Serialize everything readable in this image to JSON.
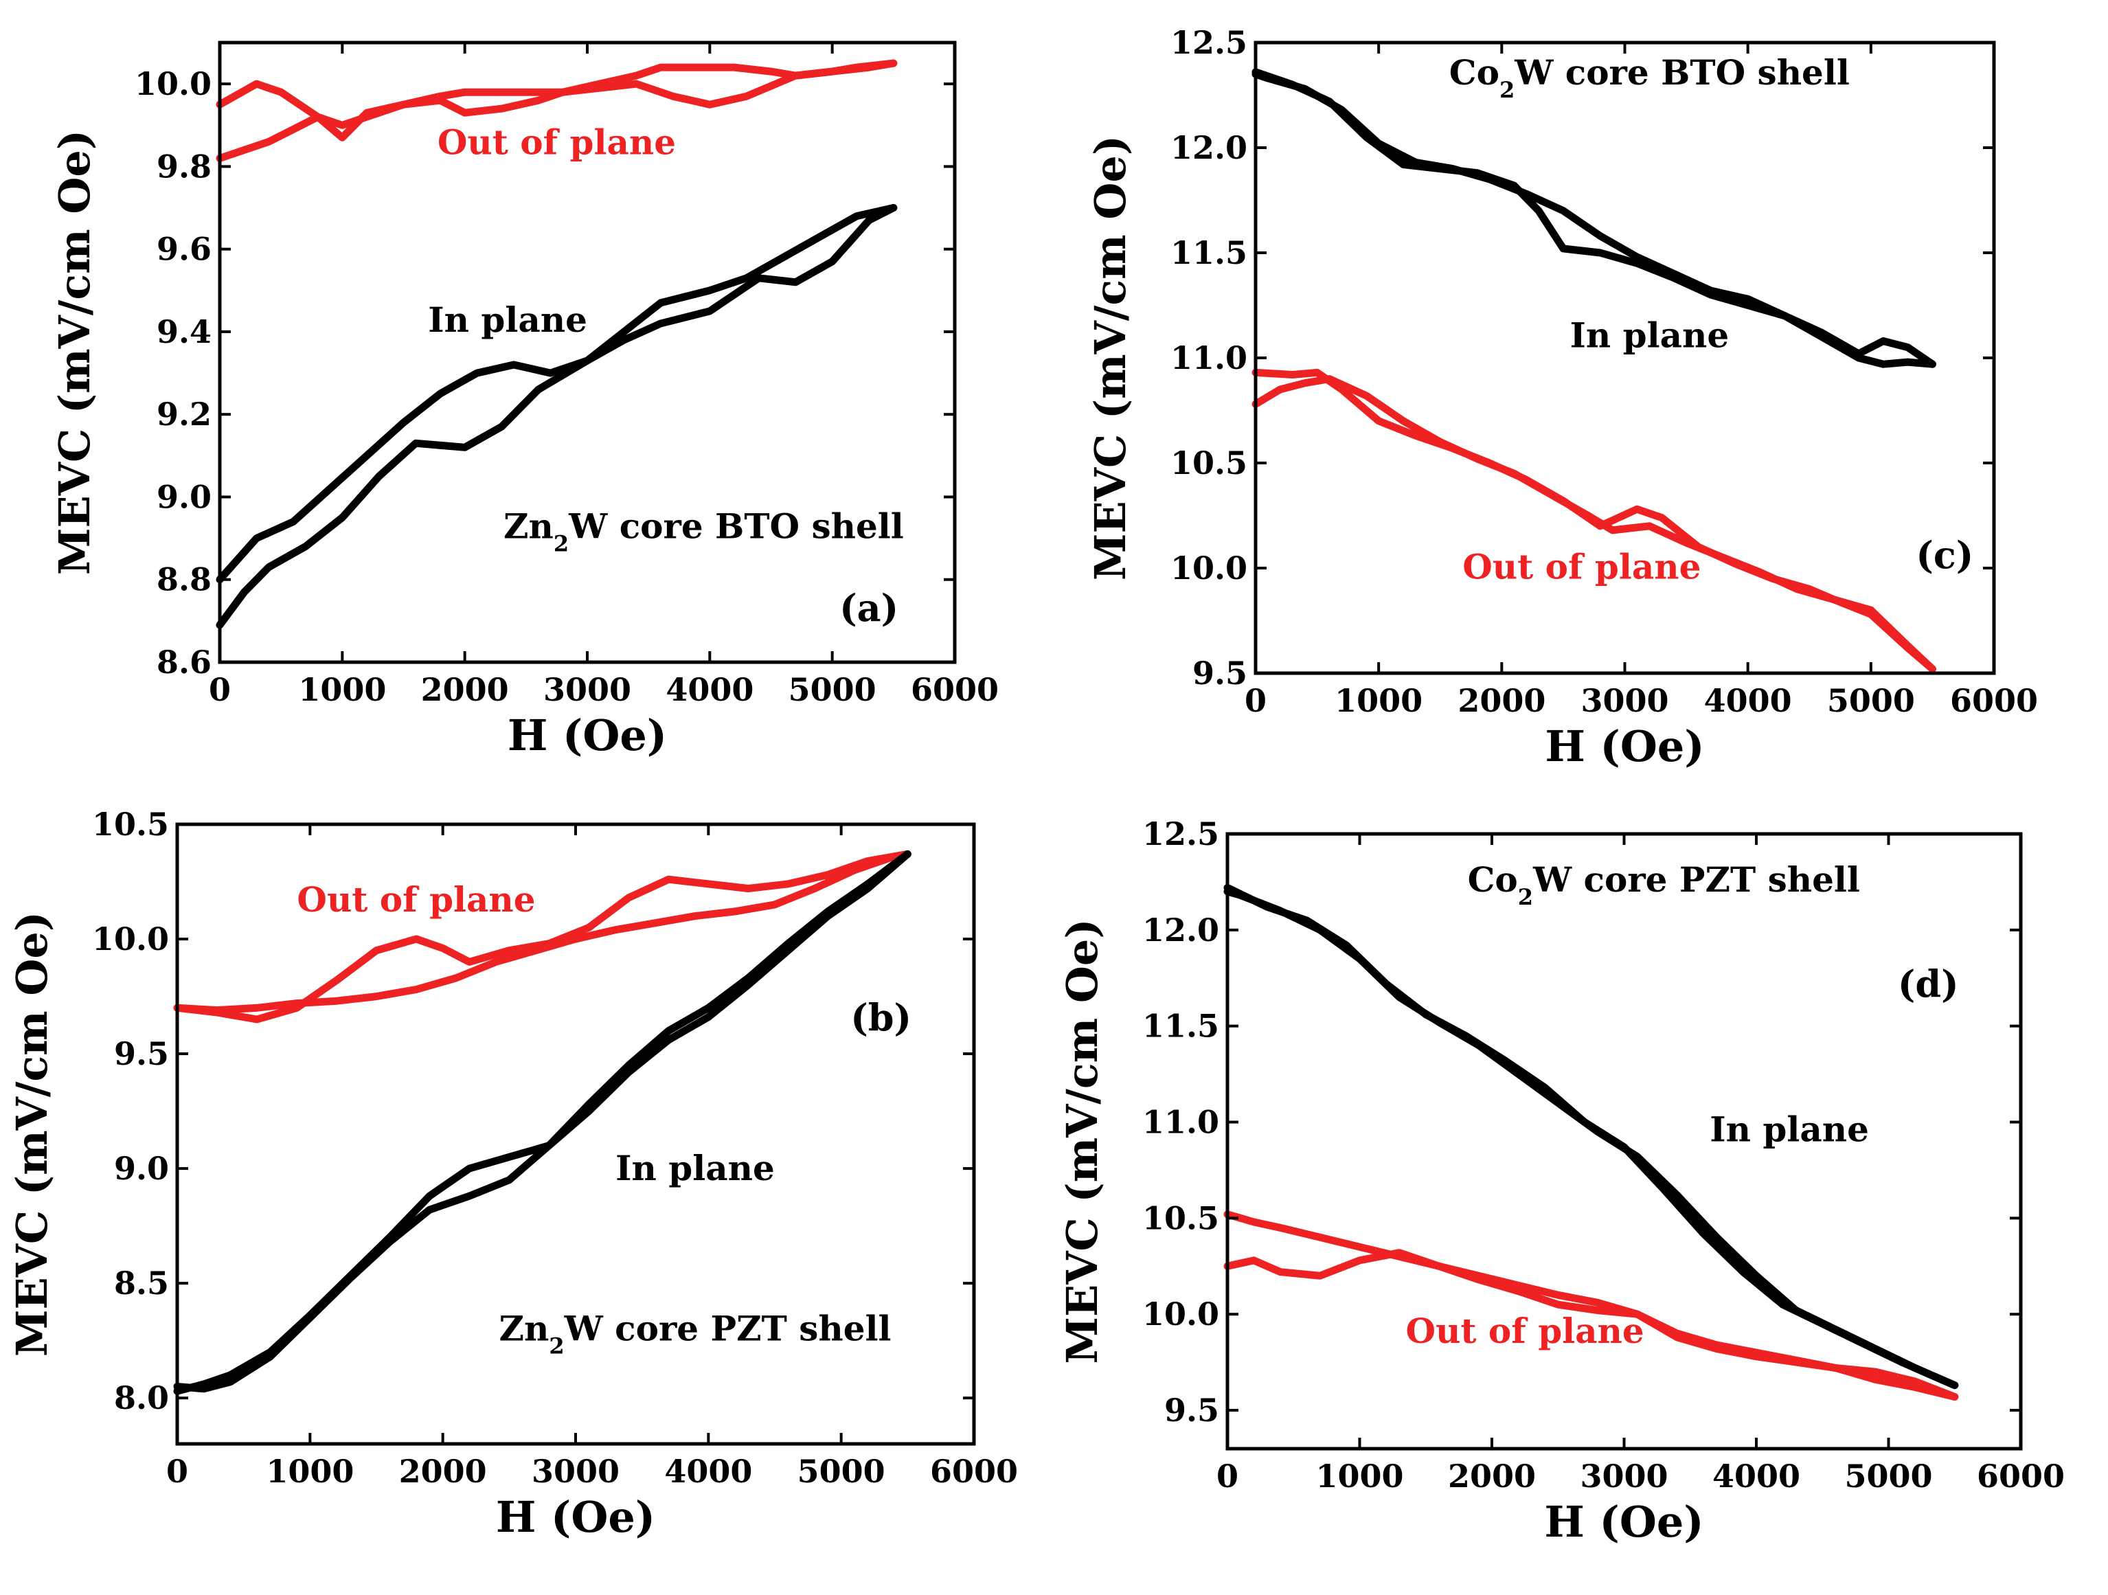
{
  "chart_data": [
    {
      "id": "a",
      "type": "line",
      "panel_label": "(a)",
      "title": "",
      "xlabel": "H (Oe)",
      "ylabel": "MEVC (mV/cm Oe)",
      "xlim": [
        0,
        6000
      ],
      "ylim": [
        8.6,
        10.1
      ],
      "xticks": [
        0,
        1000,
        2000,
        3000,
        4000,
        5000,
        6000
      ],
      "yticks": [
        8.6,
        8.8,
        9.0,
        9.2,
        9.4,
        9.6,
        9.8,
        10.0
      ],
      "ytick_decimals": 1,
      "grid": false,
      "annotations": [
        {
          "text": "Out of plane",
          "color": "#ee2222",
          "x": 2750,
          "y": 9.83
        },
        {
          "text": "In plane",
          "color": "#000000",
          "x": 2350,
          "y": 9.4
        },
        {
          "text": "Zn₂W core BTO shell",
          "color": "#000000",
          "x": 3950,
          "y": 8.9
        },
        {
          "text": "(a)",
          "color": "#000000",
          "x": 5300,
          "y": 8.7
        }
      ],
      "series": [
        {
          "color": "#ee2222",
          "x": [
            0,
            400,
            600,
            800,
            1000,
            1200,
            1500,
            1800,
            2000,
            2200,
            2500,
            2800,
            3100,
            3400,
            3700,
            4000,
            4300,
            4700,
            5000,
            5300,
            5500
          ],
          "y": [
            9.82,
            9.86,
            9.89,
            9.92,
            9.9,
            9.92,
            9.95,
            9.97,
            9.98,
            9.98,
            9.98,
            9.98,
            9.99,
            10.0,
            9.97,
            9.95,
            9.97,
            10.02,
            10.03,
            10.04,
            10.05
          ]
        },
        {
          "color": "#ee2222",
          "x": [
            5500,
            5200,
            5000,
            4700,
            4500,
            4200,
            3900,
            3600,
            3400,
            3100,
            2800,
            2600,
            2300,
            2000,
            1800,
            1500,
            1200,
            1000,
            800,
            500,
            300,
            0
          ],
          "y": [
            10.05,
            10.04,
            10.03,
            10.02,
            10.03,
            10.04,
            10.04,
            10.04,
            10.02,
            10.0,
            9.98,
            9.96,
            9.94,
            9.93,
            9.96,
            9.95,
            9.93,
            9.87,
            9.92,
            9.98,
            10.0,
            9.95
          ]
        },
        {
          "color": "#000000",
          "x": [
            0,
            200,
            400,
            700,
            1000,
            1300,
            1600,
            2000,
            2300,
            2600,
            3000,
            3300,
            3600,
            4000,
            4400,
            4700,
            5000,
            5300,
            5500
          ],
          "y": [
            8.69,
            8.77,
            8.83,
            8.88,
            8.95,
            9.05,
            9.13,
            9.12,
            9.17,
            9.26,
            9.33,
            9.38,
            9.42,
            9.45,
            9.53,
            9.52,
            9.57,
            9.67,
            9.7
          ]
        },
        {
          "color": "#000000",
          "x": [
            5500,
            5200,
            4900,
            4600,
            4300,
            4000,
            3600,
            3300,
            3000,
            2700,
            2400,
            2100,
            1800,
            1500,
            1200,
            900,
            600,
            300,
            0
          ],
          "y": [
            9.7,
            9.68,
            9.63,
            9.58,
            9.53,
            9.5,
            9.47,
            9.4,
            9.33,
            9.3,
            9.32,
            9.3,
            9.25,
            9.18,
            9.1,
            9.02,
            8.94,
            8.9,
            8.8
          ]
        }
      ]
    },
    {
      "id": "c",
      "type": "line",
      "panel_label": "(c)",
      "title": "",
      "xlabel": "H (Oe)",
      "ylabel": "MEVC (mV/cm Oe)",
      "xlim": [
        0,
        6000
      ],
      "ylim": [
        9.5,
        12.5
      ],
      "xticks": [
        0,
        1000,
        2000,
        3000,
        4000,
        5000,
        6000
      ],
      "yticks": [
        9.5,
        10.0,
        10.5,
        11.0,
        11.5,
        12.0,
        12.5
      ],
      "ytick_decimals": 1,
      "grid": false,
      "annotations": [
        {
          "text": "Co₂W core BTO shell",
          "color": "#000000",
          "x": 3200,
          "y": 12.3
        },
        {
          "text": "In plane",
          "color": "#000000",
          "x": 3200,
          "y": 11.05
        },
        {
          "text": "Out of plane",
          "color": "#ee2222",
          "x": 2650,
          "y": 9.95
        },
        {
          "text": "(c)",
          "color": "#000000",
          "x": 5600,
          "y": 10.0
        }
      ],
      "series": [
        {
          "color": "#000000",
          "x": [
            0,
            300,
            600,
            900,
            1200,
            1500,
            1800,
            2100,
            2300,
            2500,
            2800,
            3100,
            3400,
            3700,
            4000,
            4300,
            4600,
            4900,
            5100,
            5300,
            5500
          ],
          "y": [
            12.36,
            12.3,
            12.22,
            12.05,
            11.92,
            11.9,
            11.88,
            11.82,
            11.7,
            11.52,
            11.5,
            11.45,
            11.38,
            11.3,
            11.25,
            11.2,
            11.1,
            11.0,
            10.97,
            10.98,
            10.97
          ]
        },
        {
          "color": "#000000",
          "x": [
            5500,
            5300,
            5100,
            4900,
            4600,
            4300,
            4000,
            3700,
            3400,
            3100,
            2800,
            2500,
            2200,
            1900,
            1600,
            1300,
            1000,
            700,
            400,
            100,
            0
          ],
          "y": [
            10.97,
            11.05,
            11.08,
            11.02,
            11.12,
            11.2,
            11.28,
            11.32,
            11.4,
            11.48,
            11.58,
            11.7,
            11.78,
            11.85,
            11.9,
            11.93,
            12.02,
            12.18,
            12.28,
            12.33,
            12.35
          ]
        },
        {
          "color": "#ee2222",
          "x": [
            0,
            200,
            400,
            600,
            900,
            1200,
            1500,
            1800,
            2100,
            2400,
            2700,
            2900,
            3200,
            3500,
            3800,
            4100,
            4400,
            4700,
            5000,
            5300,
            5500
          ],
          "y": [
            10.78,
            10.85,
            10.88,
            10.9,
            10.82,
            10.7,
            10.6,
            10.52,
            10.45,
            10.35,
            10.25,
            10.18,
            10.2,
            10.12,
            10.05,
            9.98,
            9.9,
            9.85,
            9.78,
            9.62,
            9.52
          ]
        },
        {
          "color": "#ee2222",
          "x": [
            5500,
            5300,
            5000,
            4700,
            4500,
            4200,
            3900,
            3600,
            3300,
            3100,
            2800,
            2500,
            2200,
            1900,
            1600,
            1300,
            1000,
            700,
            500,
            300,
            0
          ],
          "y": [
            9.52,
            9.63,
            9.8,
            9.85,
            9.9,
            9.95,
            10.02,
            10.1,
            10.24,
            10.28,
            10.2,
            10.32,
            10.42,
            10.5,
            10.57,
            10.63,
            10.7,
            10.85,
            10.93,
            10.92,
            10.93
          ]
        }
      ]
    },
    {
      "id": "b",
      "type": "line",
      "panel_label": "(b)",
      "title": "",
      "xlabel": "H (Oe)",
      "ylabel": "MEVC (mV/cm Oe)",
      "xlim": [
        0,
        6000
      ],
      "ylim": [
        7.8,
        10.5
      ],
      "xticks": [
        0,
        1000,
        2000,
        3000,
        4000,
        5000,
        6000
      ],
      "yticks": [
        8.0,
        8.5,
        9.0,
        9.5,
        10.0,
        10.5
      ],
      "ytick_decimals": 1,
      "grid": false,
      "annotations": [
        {
          "text": "Out of plane",
          "color": "#ee2222",
          "x": 1800,
          "y": 10.12
        },
        {
          "text": "(b)",
          "color": "#000000",
          "x": 5300,
          "y": 9.6
        },
        {
          "text": "In plane",
          "color": "#000000",
          "x": 3900,
          "y": 8.95
        },
        {
          "text": "Zn₂W core PZT shell",
          "color": "#000000",
          "x": 3900,
          "y": 8.25
        }
      ],
      "series": [
        {
          "color": "#ee2222",
          "x": [
            0,
            300,
            600,
            900,
            1200,
            1500,
            1800,
            2100,
            2400,
            2700,
            3000,
            3300,
            3600,
            3900,
            4200,
            4500,
            4800,
            5100,
            5400,
            5500
          ],
          "y": [
            9.7,
            9.69,
            9.7,
            9.72,
            9.73,
            9.75,
            9.78,
            9.83,
            9.9,
            9.95,
            10.0,
            10.04,
            10.07,
            10.1,
            10.12,
            10.15,
            10.22,
            10.3,
            10.36,
            10.37
          ]
        },
        {
          "color": "#ee2222",
          "x": [
            5500,
            5200,
            4900,
            4600,
            4300,
            4000,
            3700,
            3400,
            3100,
            2800,
            2500,
            2200,
            2000,
            1800,
            1500,
            1200,
            900,
            600,
            300,
            0
          ],
          "y": [
            10.37,
            10.34,
            10.28,
            10.24,
            10.22,
            10.24,
            10.26,
            10.18,
            10.05,
            9.98,
            9.95,
            9.9,
            9.96,
            10.0,
            9.95,
            9.82,
            9.7,
            9.65,
            9.68,
            9.7
          ]
        },
        {
          "color": "#000000",
          "x": [
            0,
            200,
            400,
            700,
            1000,
            1300,
            1600,
            1900,
            2200,
            2500,
            2800,
            3100,
            3400,
            3700,
            4000,
            4300,
            4600,
            4900,
            5200,
            5500
          ],
          "y": [
            8.05,
            8.04,
            8.07,
            8.18,
            8.35,
            8.52,
            8.68,
            8.82,
            8.88,
            8.95,
            9.1,
            9.25,
            9.42,
            9.56,
            9.66,
            9.8,
            9.95,
            10.1,
            10.22,
            10.37
          ]
        },
        {
          "color": "#000000",
          "x": [
            5500,
            5200,
            4900,
            4600,
            4300,
            4000,
            3700,
            3400,
            3100,
            2800,
            2500,
            2200,
            1900,
            1600,
            1300,
            1000,
            700,
            400,
            200,
            0
          ],
          "y": [
            10.37,
            10.24,
            10.12,
            9.98,
            9.83,
            9.7,
            9.6,
            9.45,
            9.28,
            9.1,
            9.05,
            9.0,
            8.88,
            8.7,
            8.53,
            8.36,
            8.2,
            8.1,
            8.06,
            8.03
          ]
        }
      ]
    },
    {
      "id": "d",
      "type": "line",
      "panel_label": "(d)",
      "title": "",
      "xlabel": "H (Oe)",
      "ylabel": "MEVC (mV/cm Oe)",
      "xlim": [
        0,
        6000
      ],
      "ylim": [
        9.3,
        12.5
      ],
      "xticks": [
        0,
        1000,
        2000,
        3000,
        4000,
        5000,
        6000
      ],
      "yticks": [
        9.5,
        10.0,
        10.5,
        11.0,
        11.5,
        12.0,
        12.5
      ],
      "ytick_decimals": 1,
      "grid": false,
      "annotations": [
        {
          "text": "Co₂W core PZT shell",
          "color": "#000000",
          "x": 3300,
          "y": 12.2
        },
        {
          "text": "(d)",
          "color": "#000000",
          "x": 5300,
          "y": 11.65
        },
        {
          "text": "In plane",
          "color": "#000000",
          "x": 4250,
          "y": 10.9
        },
        {
          "text": "Out of plane",
          "color": "#ee2222",
          "x": 2250,
          "y": 9.85
        }
      ],
      "series": [
        {
          "color": "#000000",
          "x": [
            0,
            300,
            600,
            900,
            1200,
            1500,
            1800,
            2100,
            2400,
            2700,
            3000,
            3300,
            3600,
            3900,
            4200,
            4500,
            4800,
            5100,
            5400,
            5500
          ],
          "y": [
            12.22,
            12.12,
            12.05,
            11.92,
            11.72,
            11.56,
            11.45,
            11.32,
            11.18,
            11.0,
            10.87,
            10.65,
            10.42,
            10.22,
            10.05,
            9.95,
            9.85,
            9.75,
            9.66,
            9.63
          ]
        },
        {
          "color": "#000000",
          "x": [
            5500,
            5200,
            4900,
            4600,
            4300,
            4000,
            3700,
            3400,
            3100,
            2800,
            2500,
            2200,
            1900,
            1600,
            1300,
            1000,
            700,
            400,
            100,
            0
          ],
          "y": [
            9.63,
            9.72,
            9.82,
            9.92,
            10.02,
            10.2,
            10.4,
            10.62,
            10.82,
            10.95,
            11.1,
            11.25,
            11.4,
            11.52,
            11.65,
            11.85,
            12.0,
            12.1,
            12.18,
            12.2
          ]
        },
        {
          "color": "#ee2222",
          "x": [
            0,
            200,
            400,
            700,
            1000,
            1300,
            1600,
            1900,
            2200,
            2500,
            2800,
            3100,
            3400,
            3700,
            4000,
            4300,
            4600,
            4900,
            5200,
            5500
          ],
          "y": [
            10.25,
            10.28,
            10.22,
            10.2,
            10.28,
            10.32,
            10.25,
            10.18,
            10.12,
            10.05,
            10.02,
            10.0,
            9.88,
            9.82,
            9.78,
            9.75,
            9.72,
            9.7,
            9.65,
            9.57
          ]
        },
        {
          "color": "#ee2222",
          "x": [
            5500,
            5200,
            4900,
            4600,
            4300,
            4000,
            3700,
            3400,
            3100,
            2800,
            2500,
            2200,
            1900,
            1600,
            1300,
            1000,
            700,
            400,
            200,
            0
          ],
          "y": [
            9.57,
            9.62,
            9.66,
            9.72,
            9.76,
            9.8,
            9.84,
            9.9,
            10.0,
            10.06,
            10.1,
            10.15,
            10.2,
            10.25,
            10.3,
            10.35,
            10.4,
            10.45,
            10.48,
            10.52
          ]
        }
      ]
    }
  ]
}
